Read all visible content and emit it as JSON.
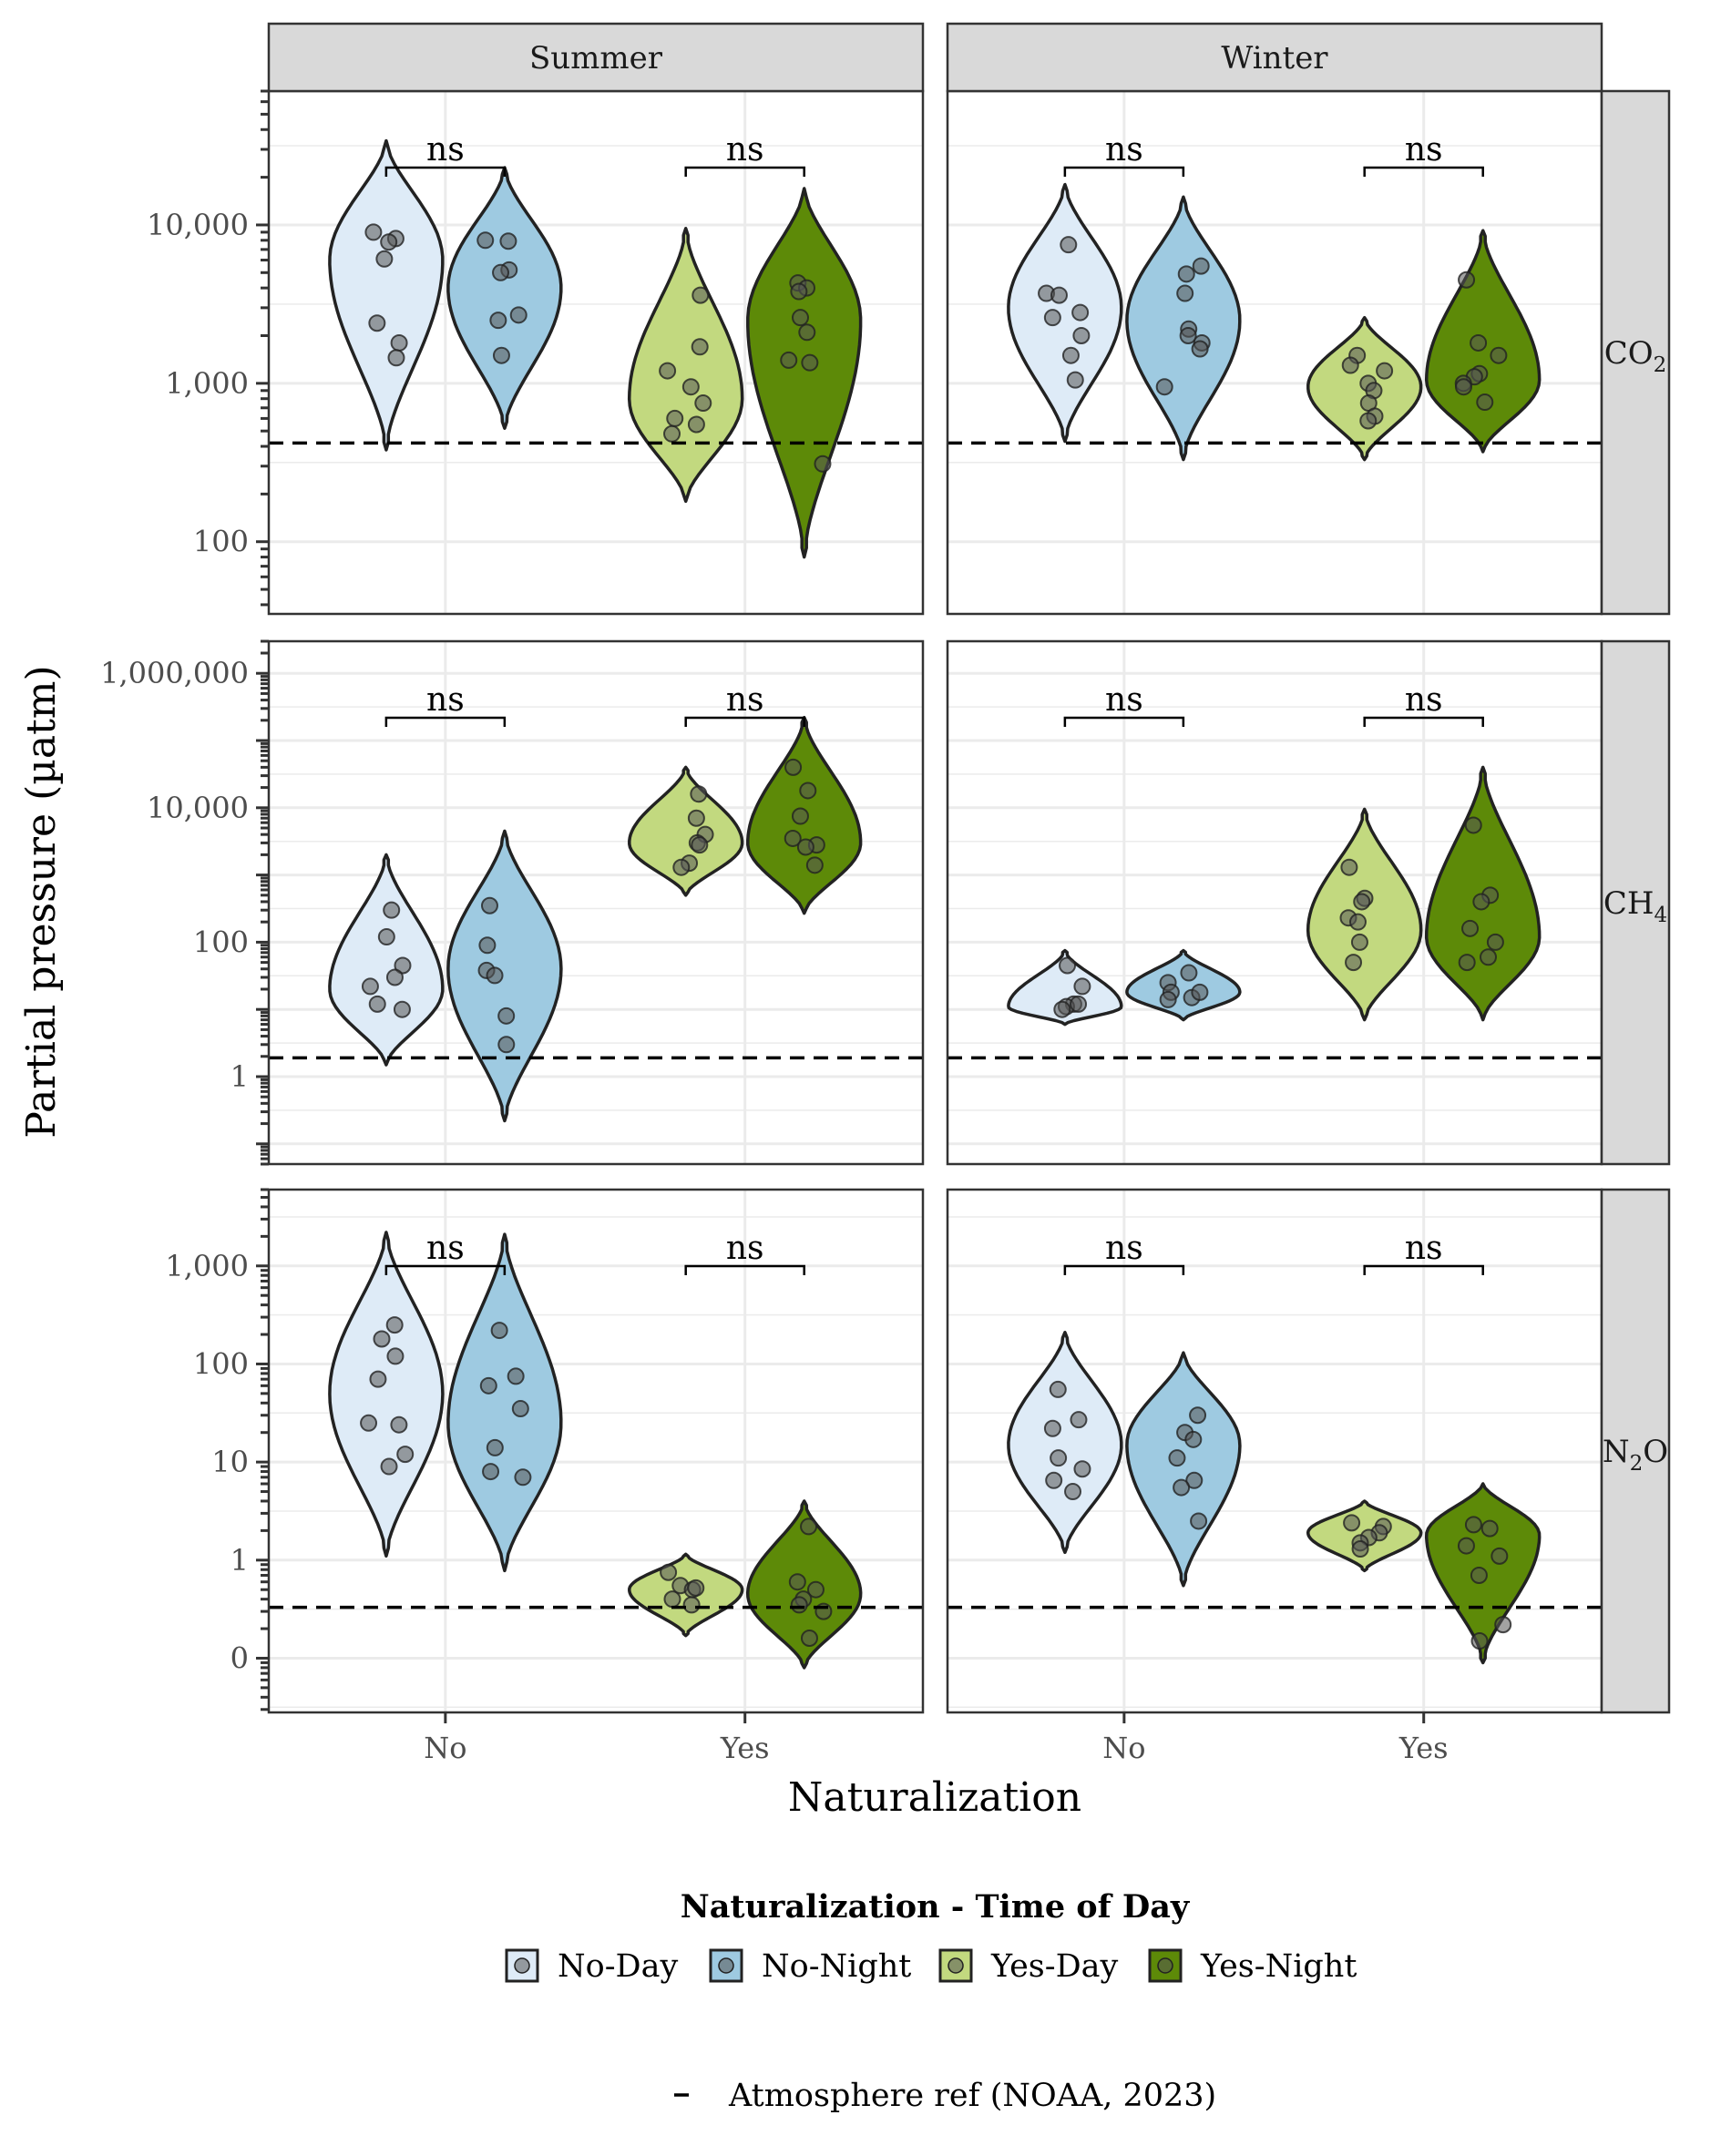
{
  "chart_data": {
    "type": "violin",
    "facet_cols": [
      "Summer",
      "Winter"
    ],
    "facet_rows": [
      {
        "base": "CO",
        "sub": "2"
      },
      {
        "base": "CH",
        "sub": "4"
      },
      {
        "base": "N",
        "sub": "2",
        "tail": "O"
      }
    ],
    "xlabel": "Naturalization",
    "ylabel": "Partial pressure (µatm)",
    "categories": [
      "No",
      "Yes"
    ],
    "y_scale": "log",
    "significance_label": "ns",
    "legend": {
      "title": "Naturalization - Time of Day",
      "items": [
        {
          "label": "No-Day",
          "color": "#deebf7"
        },
        {
          "label": "No-Night",
          "color": "#9ecae1"
        },
        {
          "label": "Yes-Day",
          "color": "#c2d97f"
        },
        {
          "label": "Yes-Night",
          "color": "#5d8a08"
        }
      ],
      "ref_label": "Atmosphere ref (NOAA, 2023)"
    },
    "panels": [
      {
        "row": 0,
        "col": 0,
        "ylim": [
          35,
          70000
        ],
        "ticks": [
          {
            "v": 10000,
            "l": "10,000"
          },
          {
            "v": 1000,
            "l": "1,000"
          },
          {
            "v": 100,
            "l": "100"
          }
        ],
        "ref": 420,
        "groups": [
          {
            "series": "No-Day",
            "points": [
              9000,
              8200,
              7800,
              6100,
              2400,
              1800,
              1450
            ],
            "range": [
              380,
              34000
            ],
            "peak": 6000
          },
          {
            "series": "No-Night",
            "points": [
              8000,
              7900,
              5200,
              5000,
              2700,
              2500,
              1500
            ],
            "range": [
              520,
              23000
            ],
            "peak": 4000
          },
          {
            "series": "Yes-Day",
            "points": [
              3600,
              1700,
              1200,
              950,
              750,
              600,
              550,
              480
            ],
            "range": [
              180,
              9500
            ],
            "peak": 800
          },
          {
            "series": "Yes-Night",
            "points": [
              4300,
              4000,
              3800,
              2600,
              2100,
              1400,
              1350,
              310
            ],
            "range": [
              80,
              17000
            ],
            "peak": 2500
          }
        ]
      },
      {
        "row": 0,
        "col": 1,
        "ylim": [
          35,
          70000
        ],
        "ticks": [],
        "ref": 420,
        "groups": [
          {
            "series": "No-Day",
            "points": [
              7500,
              3700,
              3600,
              2800,
              2600,
              2000,
              1500,
              1050
            ],
            "range": [
              430,
              18000
            ],
            "peak": 3000
          },
          {
            "series": "No-Night",
            "points": [
              5500,
              4900,
              3700,
              2200,
              2000,
              1800,
              1650,
              950
            ],
            "range": [
              330,
              15000
            ],
            "peak": 2500
          },
          {
            "series": "Yes-Day",
            "points": [
              1500,
              1300,
              1200,
              1000,
              900,
              750,
              620,
              580
            ],
            "range": [
              330,
              2600
            ],
            "peak": 950
          },
          {
            "series": "Yes-Night",
            "points": [
              4500,
              1800,
              1500,
              1150,
              1100,
              1000,
              950,
              760
            ],
            "range": [
              370,
              9200
            ],
            "peak": 1050
          }
        ]
      },
      {
        "row": 1,
        "col": 0,
        "ylim": [
          0.05,
          3000000
        ],
        "ticks": [
          {
            "v": 1000000,
            "l": "1,000,000"
          },
          {
            "v": 10000,
            "l": "10,000"
          },
          {
            "v": 100,
            "l": "100"
          },
          {
            "v": 1,
            "l": "1"
          }
        ],
        "ref": 1.9,
        "groups": [
          {
            "series": "No-Day",
            "points": [
              300,
              120,
              45,
              30,
              22,
              12,
              10
            ],
            "range": [
              1.5,
              2000
            ],
            "peak": 20
          },
          {
            "series": "No-Night",
            "points": [
              350,
              90,
              38,
              32,
              8,
              3
            ],
            "range": [
              0.22,
              4500
            ],
            "peak": 40
          },
          {
            "series": "Yes-Day",
            "points": [
              16000,
              7000,
              4000,
              3000,
              2800,
              1500,
              1300
            ],
            "range": [
              500,
              40000
            ],
            "peak": 3000
          },
          {
            "series": "Yes-Night",
            "points": [
              40000,
              18000,
              7500,
              3500,
              2800,
              2600,
              1400
            ],
            "range": [
              270,
              220000
            ],
            "peak": 3000
          }
        ]
      },
      {
        "row": 1,
        "col": 1,
        "ylim": [
          0.05,
          3000000
        ],
        "ticks": [],
        "ref": 1.9,
        "groups": [
          {
            "series": "No-Day",
            "points": [
              45,
              22,
              12,
              11,
              10,
              12
            ],
            "range": [
              6,
              75
            ],
            "peak": 11
          },
          {
            "series": "No-Night",
            "points": [
              35,
              25,
              18,
              14,
              15,
              18
            ],
            "range": [
              7,
              75
            ],
            "peak": 18
          },
          {
            "series": "Yes-Day",
            "points": [
              1300,
              450,
              400,
              230,
              200,
              100,
              50
            ],
            "range": [
              7,
              9500
            ],
            "peak": 150
          },
          {
            "series": "Yes-Night",
            "points": [
              5500,
              500,
              400,
              160,
              100,
              60,
              50
            ],
            "range": [
              7,
              40000
            ],
            "peak": 120
          }
        ]
      },
      {
        "row": 2,
        "col": 0,
        "ylim": [
          0.028,
          6000
        ],
        "ticks": [
          {
            "v": 1000,
            "l": "1,000"
          },
          {
            "v": 100,
            "l": "100"
          },
          {
            "v": 10,
            "l": "10"
          },
          {
            "v": 1,
            "l": "1"
          },
          {
            "v": 0.1,
            "l": "0"
          }
        ],
        "ref": 0.33,
        "groups": [
          {
            "series": "No-Day",
            "points": [
              250,
              180,
              120,
              70,
              25,
              24,
              12,
              9
            ],
            "range": [
              1.1,
              2200
            ],
            "peak": 50
          },
          {
            "series": "No-Night",
            "points": [
              220,
              75,
              60,
              35,
              14,
              8,
              7
            ],
            "range": [
              0.78,
              2100
            ],
            "peak": 25
          },
          {
            "series": "Yes-Day",
            "points": [
              0.75,
              0.55,
              0.5,
              0.4,
              0.35,
              0.52
            ],
            "range": [
              0.17,
              1.15
            ],
            "peak": 0.5
          },
          {
            "series": "Yes-Night",
            "points": [
              2.2,
              0.6,
              0.5,
              0.4,
              0.35,
              0.3,
              0.16
            ],
            "range": [
              0.08,
              4
            ],
            "peak": 0.45
          }
        ]
      },
      {
        "row": 2,
        "col": 1,
        "ylim": [
          0.028,
          6000
        ],
        "ticks": [],
        "ref": 0.33,
        "groups": [
          {
            "series": "No-Day",
            "points": [
              55,
              27,
              22,
              11,
              8.5,
              6.5,
              5
            ],
            "range": [
              1.2,
              210
            ],
            "peak": 15
          },
          {
            "series": "No-Night",
            "points": [
              30,
              20,
              17,
              11,
              6.5,
              5.5,
              2.5
            ],
            "range": [
              0.55,
              130
            ],
            "peak": 15
          },
          {
            "series": "Yes-Day",
            "points": [
              2.4,
              2.2,
              1.9,
              1.7,
              1.5,
              1.3
            ],
            "range": [
              0.78,
              4
            ],
            "peak": 1.9
          },
          {
            "series": "Yes-Night",
            "points": [
              2.3,
              2.1,
              1.4,
              1.1,
              0.7,
              0.22,
              0.15
            ],
            "range": [
              0.09,
              6
            ],
            "peak": 1.8
          }
        ]
      }
    ]
  }
}
